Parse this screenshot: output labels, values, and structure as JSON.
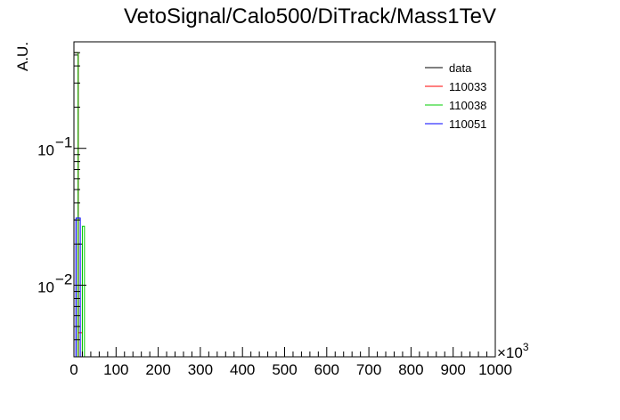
{
  "chart_data": {
    "type": "histogram",
    "title": "VetoSignal/Calo500/DiTrack/Mass1TeV",
    "ylabel": "A.U.",
    "xlabel": "",
    "x_scale_label": "×10",
    "x_scale_exponent": "3",
    "xlim": [
      0,
      1000
    ],
    "ylim": [
      0.003,
      0.6
    ],
    "yscale": "log",
    "x_ticks": [
      "0",
      "100",
      "200",
      "300",
      "400",
      "500",
      "600",
      "700",
      "800",
      "900",
      "1000"
    ],
    "y_ticks": [
      {
        "value": 0.1,
        "base": "10",
        "exp": "−1"
      },
      {
        "value": 0.01,
        "base": "10",
        "exp": "−2"
      }
    ],
    "legend_position": "top-right",
    "series": [
      {
        "name": "data",
        "color": "#000000",
        "bins": [
          {
            "x0": 0,
            "x1": 10,
            "y": 0.48
          },
          {
            "x0": 10,
            "x1": 20,
            "y": 0.02
          }
        ]
      },
      {
        "name": "110033",
        "color": "#ff0000",
        "bins": [
          {
            "x0": 0,
            "x1": 10,
            "y": 0.5
          },
          {
            "x0": 10,
            "x1": 20,
            "y": 0.0045
          }
        ]
      },
      {
        "name": "110038",
        "color": "#00cc00",
        "bins": [
          {
            "x0": 0,
            "x1": 10,
            "y": 0.5
          },
          {
            "x0": 20,
            "x1": 25,
            "y": 0.027
          }
        ]
      },
      {
        "name": "110051",
        "color": "#0000ff",
        "bins": [
          {
            "x0": 0,
            "x1": 5,
            "y": 0.03
          },
          {
            "x0": 5,
            "x1": 15,
            "y": 0.031
          }
        ]
      }
    ]
  }
}
